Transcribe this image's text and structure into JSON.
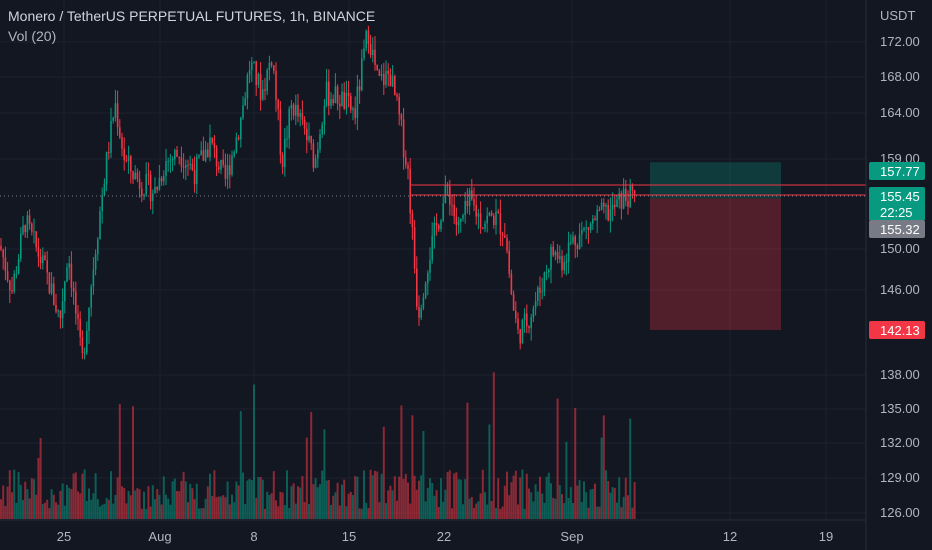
{
  "header": {
    "title": "Monero / TetherUS PERPETUAL FUTURES, 1h, BINANCE",
    "volume_label": "Vol (20)"
  },
  "chart_data": {
    "type": "candlestick",
    "symbol": "Monero / TetherUS PERPETUAL FUTURES",
    "timeframe": "1h",
    "exchange": "BINANCE",
    "currency": "USDT",
    "y_ticks": [
      "172.00",
      "168.00",
      "164.00",
      "159.00",
      "150.00",
      "146.00",
      "138.00",
      "135.00",
      "132.00",
      "129.00",
      "126.00"
    ],
    "x_ticks": [
      "25",
      "Aug",
      "8",
      "15",
      "22",
      "Sep",
      "12",
      "19"
    ],
    "price_markers": [
      {
        "label": "157.77",
        "color": "#089981"
      },
      {
        "label": "155.45",
        "color": "#089981"
      },
      {
        "label": "22:25",
        "color": "#089981"
      },
      {
        "label": "155.32",
        "color": "#787b86"
      },
      {
        "label": "142.13",
        "color": "#f23645"
      }
    ],
    "position": {
      "entry": 155.32,
      "target": 157.77,
      "stop": 142.13
    },
    "colors": {
      "up": "#089981",
      "down": "#f23645",
      "background": "#131722",
      "grid": "#1e222d"
    }
  }
}
